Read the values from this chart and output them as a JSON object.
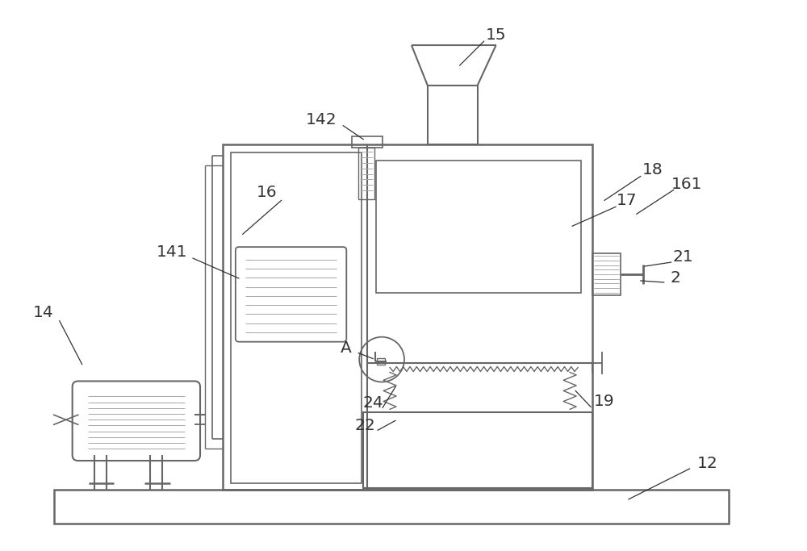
{
  "bg_color": "#ffffff",
  "line_color": "#aaaaaa",
  "line_color_dark": "#666666",
  "label_color": "#333333",
  "figsize": [
    10.0,
    6.83
  ],
  "dpi": 100
}
